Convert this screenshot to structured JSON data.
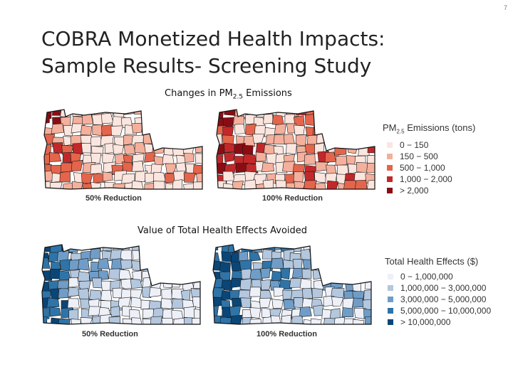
{
  "slide": {
    "page_number": "7",
    "title_line1": "COBRA Monetized Health Impacts:",
    "title_line2": "Sample Results- Screening Study"
  },
  "emissions_section": {
    "heading_prefix": "Changes in PM",
    "heading_sub": "2.5",
    "heading_suffix": " Emissions",
    "map_left_caption": "50% Reduction",
    "map_right_caption": "100% Reduction",
    "legend": {
      "title_prefix": "PM",
      "title_sub": "2.5",
      "title_suffix": " Emissions (tons)",
      "items": [
        {
          "label": "0 − 150",
          "color": "#fbe6df"
        },
        {
          "label": "150 − 500",
          "color": "#f4b09c"
        },
        {
          "label": "500 − 1,000",
          "color": "#e4654b"
        },
        {
          "label": "1,000 − 2,000",
          "color": "#c2282a"
        },
        {
          "label": "> 2,000",
          "color": "#8a0d14"
        }
      ]
    }
  },
  "health_section": {
    "heading": "Value of Total Health Effects Avoided",
    "map_left_caption": "50% Reduction",
    "map_right_caption": "100% Reduction",
    "legend": {
      "title": "Total Health Effects ($)",
      "items": [
        {
          "label": "0 − 1,000,000",
          "color": "#eef0f8"
        },
        {
          "label": "1,000,000 − 3,000,000",
          "color": "#b3c7de"
        },
        {
          "label": "3,000,000 − 5,000,000",
          "color": "#6f9dc7"
        },
        {
          "label": "5,000,000 − 10,000,000",
          "color": "#2e74a8"
        },
        {
          "label": "> 10,000,000",
          "color": "#0a4677"
        }
      ]
    }
  }
}
